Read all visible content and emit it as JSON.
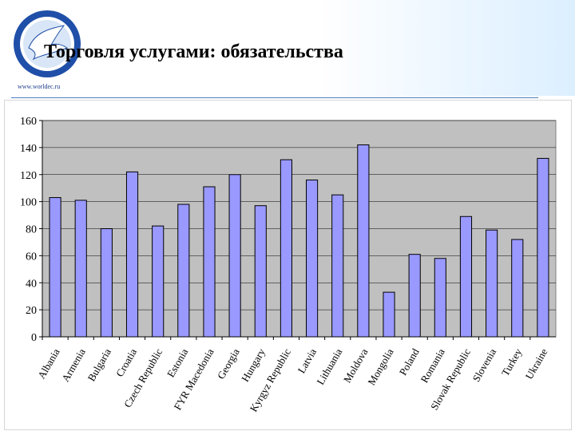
{
  "header": {
    "title": "Торговля услугами: обязательства",
    "site_url": "www.worldec.ru",
    "logo_icon": "dove-globe-emblem",
    "accent_color": "#4a7bc4"
  },
  "chart_data": {
    "type": "bar",
    "title": "",
    "xlabel": "",
    "ylabel": "",
    "ylim": [
      0,
      160
    ],
    "yticks": [
      0,
      20,
      40,
      60,
      80,
      100,
      120,
      140,
      160
    ],
    "grid": true,
    "legend": "none",
    "bar_color": "#9999ff",
    "plot_bg": "#c0c0c0",
    "categories": [
      "Albania",
      "Armenia",
      "Bulgaria",
      "Croatia",
      "Czech Republic",
      "Estonia",
      "FYR Macedonia",
      "Georgia",
      "Hungary",
      "Kyrgyz Republic",
      "Latvia",
      "Lithuania",
      "Moldova",
      "Mongolia",
      "Poland",
      "Romania",
      "Slovak Republic",
      "Slovenia",
      "Turkey",
      "Ukraine"
    ],
    "values": [
      103,
      101,
      80,
      122,
      82,
      98,
      111,
      120,
      97,
      131,
      116,
      105,
      142,
      33,
      61,
      58,
      89,
      79,
      72,
      132
    ]
  }
}
